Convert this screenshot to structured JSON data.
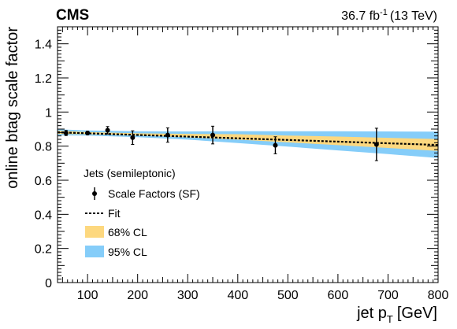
{
  "chart_data": {
    "type": "scatter",
    "experiment_label": "CMS",
    "lumi_label": {
      "value": "36.7 fb",
      "exponent": "-1",
      "energy": "(13 TeV)"
    },
    "xlabel": {
      "main": "jet p",
      "sub": "T",
      "unit": "[GeV]"
    },
    "ylabel": "online btag scale factor",
    "xlim": [
      40,
      800
    ],
    "ylim": [
      0,
      1.5
    ],
    "x_ticks": [
      100,
      200,
      300,
      400,
      500,
      600,
      700,
      800
    ],
    "y_ticks": [
      0,
      0.2,
      0.4,
      0.6,
      0.8,
      1,
      1.2,
      1.4
    ],
    "x_tick_labels": [
      "100",
      "200",
      "300",
      "400",
      "500",
      "600",
      "700",
      "800"
    ],
    "y_tick_labels": [
      "0",
      "0.2",
      "0.4",
      "0.6",
      "0.8",
      "1",
      "1.2",
      "1.4"
    ],
    "grid": false,
    "legend": {
      "title": "Jets (semileptonic)",
      "placement": "lower-left",
      "entries": [
        {
          "label": "Scale Factors (SF)",
          "kind": "marker"
        },
        {
          "label": "Fit",
          "kind": "dashed-line"
        },
        {
          "label": "68% CL",
          "kind": "band",
          "color": "#fdd87f"
        },
        {
          "label": "95% CL",
          "kind": "band",
          "color": "#85cdf9"
        }
      ]
    },
    "series": [
      {
        "name": "Scale Factors (SF)",
        "points": [
          {
            "x": 57,
            "y": 0.877,
            "err": 0.015
          },
          {
            "x": 100,
            "y": 0.877,
            "err": 0.01
          },
          {
            "x": 140,
            "y": 0.893,
            "err": 0.022
          },
          {
            "x": 190,
            "y": 0.85,
            "err": 0.04
          },
          {
            "x": 260,
            "y": 0.865,
            "err": 0.042
          },
          {
            "x": 350,
            "y": 0.865,
            "err": 0.052
          },
          {
            "x": 475,
            "y": 0.805,
            "err": 0.05
          },
          {
            "x": 677,
            "y": 0.81,
            "err": 0.095
          }
        ]
      },
      {
        "name": "Fit",
        "line": {
          "x": [
            40,
            800
          ],
          "y": [
            0.881,
            0.807
          ]
        }
      },
      {
        "name": "68% CL",
        "band": {
          "x": [
            40,
            100,
            200,
            300,
            400,
            500,
            600,
            700,
            800
          ],
          "low": [
            0.871,
            0.87,
            0.863,
            0.852,
            0.838,
            0.822,
            0.806,
            0.789,
            0.772
          ],
          "high": [
            0.891,
            0.882,
            0.875,
            0.872,
            0.87,
            0.862,
            0.856,
            0.849,
            0.842
          ]
        }
      },
      {
        "name": "95% CL",
        "band": {
          "x": [
            40,
            100,
            200,
            300,
            400,
            500,
            600,
            700,
            800
          ],
          "low": [
            0.863,
            0.862,
            0.853,
            0.838,
            0.818,
            0.797,
            0.775,
            0.753,
            0.73
          ],
          "high": [
            0.899,
            0.892,
            0.887,
            0.886,
            0.888,
            0.887,
            0.887,
            0.886,
            0.885
          ]
        }
      }
    ]
  }
}
